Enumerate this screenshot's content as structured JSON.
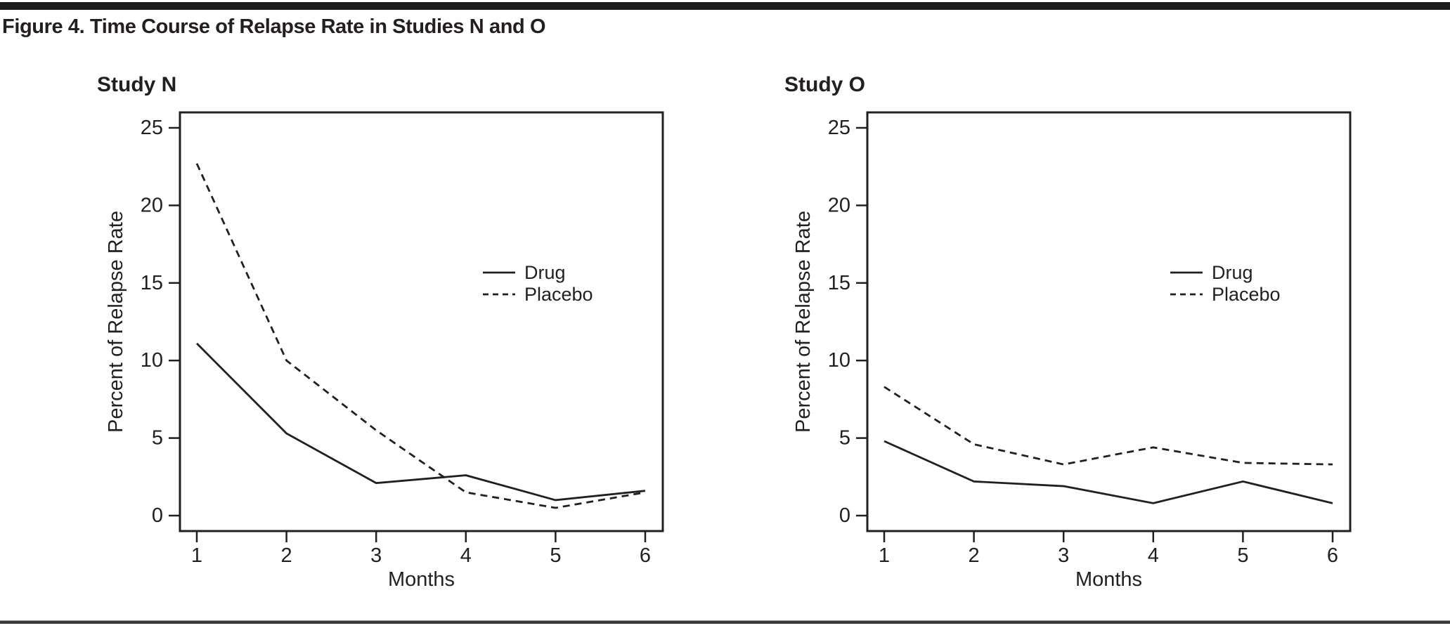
{
  "figure": {
    "title": "Figure 4. Time Course of Relapse Rate in Studies N and O"
  },
  "colors": {
    "ink": "#231f20",
    "top_bar": "#1b1b1b",
    "bottom_rule": "#3a3a3a"
  },
  "chart_data": [
    {
      "type": "line",
      "title": "Study N",
      "xlabel": "Months",
      "ylabel": "Percent of Relapse Rate",
      "x": [
        1,
        2,
        3,
        4,
        5,
        6
      ],
      "x_tick_labels": [
        "1",
        "2",
        "3",
        "4",
        "5",
        "6"
      ],
      "y_ticks": [
        0,
        5,
        10,
        15,
        20,
        25
      ],
      "ylim": [
        -1,
        26
      ],
      "grid": false,
      "legend_position": "center-right-inside",
      "series": [
        {
          "name": "Drug",
          "style": "solid",
          "values": [
            11.1,
            5.3,
            2.1,
            2.6,
            1.0,
            1.6
          ]
        },
        {
          "name": "Placebo",
          "style": "dashed",
          "values": [
            22.7,
            10.0,
            5.5,
            1.5,
            0.5,
            1.5
          ]
        }
      ]
    },
    {
      "type": "line",
      "title": "Study O",
      "xlabel": "Months",
      "ylabel": "Percent of Relapse Rate",
      "x": [
        1,
        2,
        3,
        4,
        5,
        6
      ],
      "x_tick_labels": [
        "1",
        "2",
        "3",
        "4",
        "5",
        "6"
      ],
      "y_ticks": [
        0,
        5,
        10,
        15,
        20,
        25
      ],
      "ylim": [
        -1,
        26
      ],
      "grid": false,
      "legend_position": "center-right-inside",
      "series": [
        {
          "name": "Drug",
          "style": "solid",
          "values": [
            4.8,
            2.2,
            1.9,
            0.8,
            2.2,
            0.8
          ]
        },
        {
          "name": "Placebo",
          "style": "dashed",
          "values": [
            8.3,
            4.6,
            3.3,
            4.4,
            3.4,
            3.3
          ]
        }
      ]
    }
  ]
}
